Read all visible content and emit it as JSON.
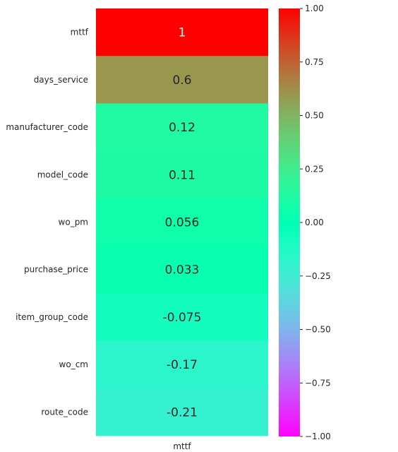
{
  "chart_data": {
    "type": "heatmap",
    "title": "",
    "columns": [
      "mttf"
    ],
    "rows": [
      "mttf",
      "days_service",
      "manufacturer_code",
      "model_code",
      "wo_pm",
      "purchase_price",
      "item_group_code",
      "wo_cm",
      "route_code"
    ],
    "values": [
      1,
      0.6,
      0.12,
      0.11,
      0.056,
      0.033,
      -0.075,
      -0.17,
      -0.21
    ],
    "value_labels": [
      "1",
      "0.6",
      "0.12",
      "0.11",
      "0.056",
      "0.033",
      "-0.075",
      "-0.17",
      "-0.21"
    ],
    "colormap": "rainbow",
    "vmin": -1,
    "vmax": 1,
    "colorbar": {
      "ticks": [
        1.0,
        0.75,
        0.5,
        0.25,
        0.0,
        -0.25,
        -0.5,
        -0.75,
        -1.0
      ],
      "tick_labels": [
        "1.00",
        "0.75",
        "0.50",
        "0.25",
        "0.00",
        "−0.25",
        "−0.50",
        "−0.75",
        "−1.00"
      ]
    }
  }
}
